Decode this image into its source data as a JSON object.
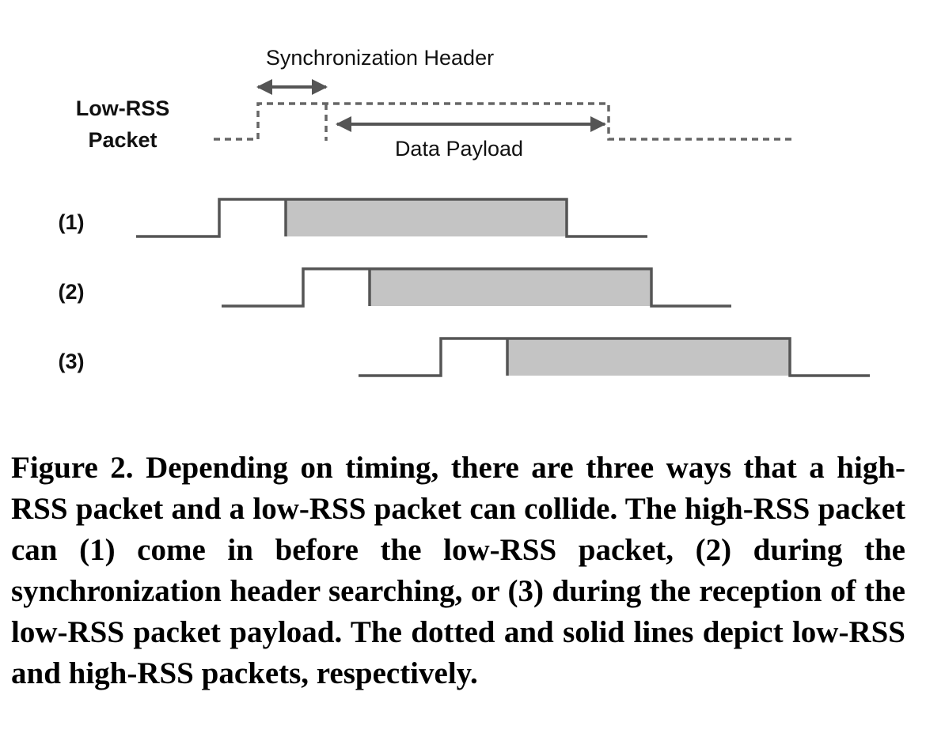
{
  "figure": {
    "labels": {
      "sync_header": "Synchronization Header",
      "data_payload": "Data Payload",
      "low_rss_line1": "Low-RSS",
      "low_rss_line2": "Packet",
      "row1": "(1)",
      "row2": "(2)",
      "row3": "(3)"
    },
    "colors": {
      "line": "#555555",
      "payload_fill": "#c4c4c4",
      "text": "#111111"
    }
  },
  "caption": {
    "text": "Figure 2.  Depending on timing, there are three ways that a high-RSS packet and a low-RSS packet can collide. The high-RSS packet can (1) come in before the low-RSS packet, (2) during the synchronization header searching, or (3) during the reception of the low-RSS packet payload. The dotted and solid lines depict low-RSS and high-RSS packets, respectively."
  }
}
